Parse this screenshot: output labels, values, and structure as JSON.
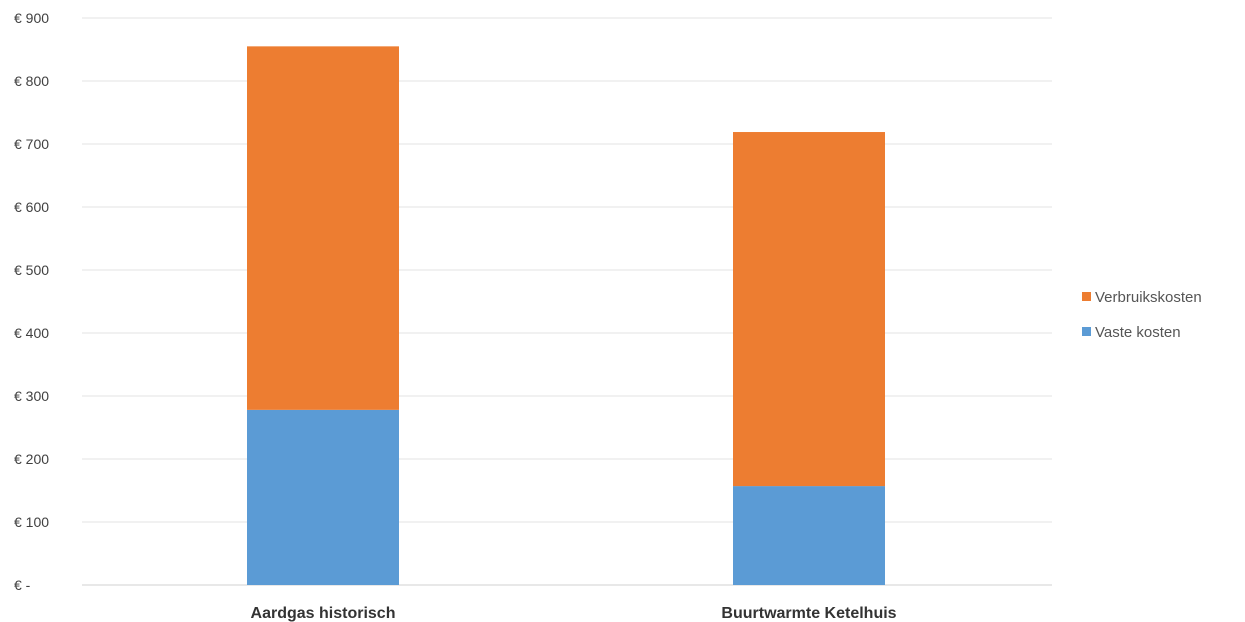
{
  "chart_data": {
    "type": "bar",
    "stacked": true,
    "categories": [
      "Aardgas historisch",
      "Buurtwarmte Ketelhuis"
    ],
    "series": [
      {
        "name": "Vaste kosten",
        "values": [
          278,
          157
        ],
        "color": "#5b9bd5"
      },
      {
        "name": "Verbruikskosten",
        "values": [
          577,
          562
        ],
        "color": "#ed7d31"
      }
    ],
    "y_ticks": [
      0,
      100,
      200,
      300,
      400,
      500,
      600,
      700,
      800,
      900
    ],
    "y_tick_labels": [
      "€ -",
      "€ 100",
      "€ 200",
      "€ 300",
      "€ 400",
      "€ 500",
      "€ 600",
      "€ 700",
      "€ 800",
      "€ 900"
    ],
    "ylim": [
      0,
      900
    ],
    "grid": true,
    "legend_position": "right",
    "legend_order": [
      "Verbruikskosten",
      "Vaste kosten"
    ]
  }
}
